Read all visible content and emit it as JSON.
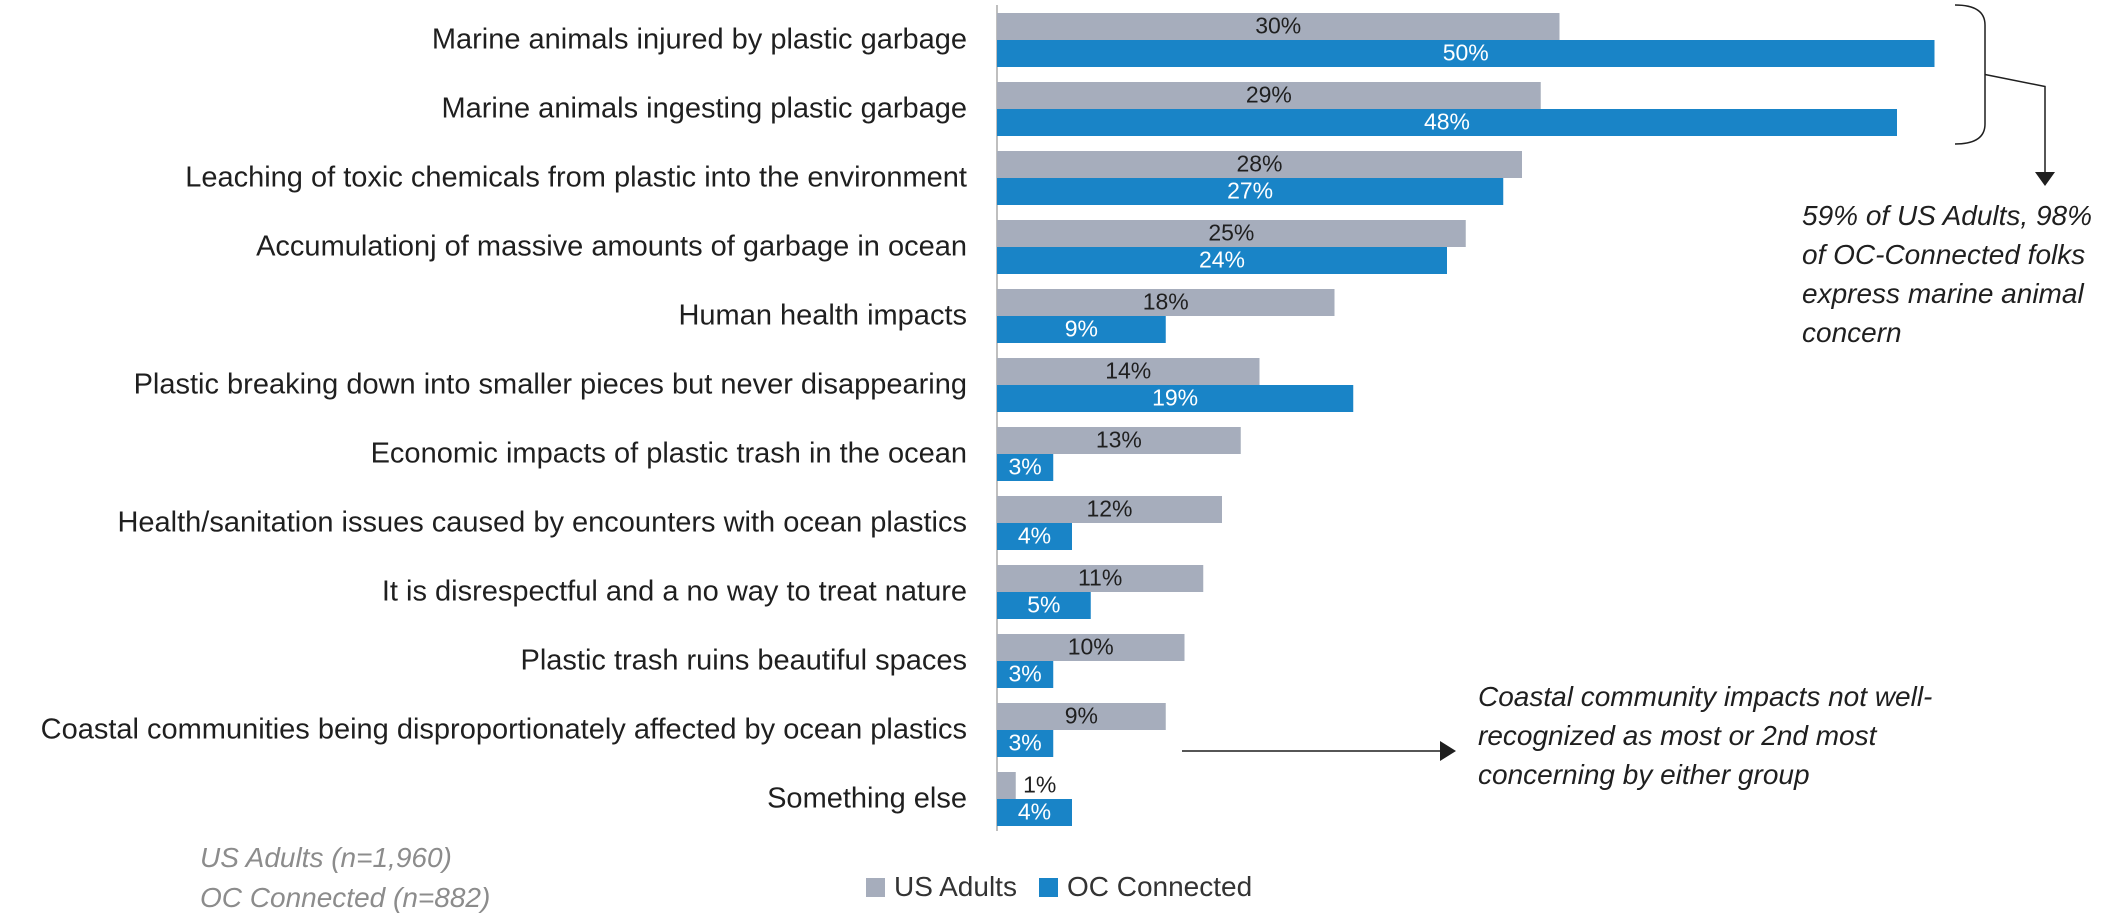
{
  "chart_data": {
    "type": "bar",
    "orientation": "horizontal",
    "categories": [
      "Marine animals injured by plastic garbage",
      "Marine animals ingesting plastic garbage",
      "Leaching of toxic chemicals from plastic into the environment",
      "Accumulationj of massive amounts of garbage in ocean",
      "Human health impacts",
      "Plastic breaking down into smaller pieces but never disappearing",
      "Economic impacts of plastic trash in the ocean",
      "Health/sanitation issues caused by encounters with ocean plastics",
      "It is disrespectful and a no way to treat nature",
      "Plastic trash ruins beautiful spaces",
      "Coastal communities being disproportionately affected by ocean plastics",
      "Something else"
    ],
    "series": [
      {
        "name": "US Adults",
        "color": "#a6adbc",
        "label_color": "#1f1f1f",
        "values": [
          30,
          29,
          28,
          25,
          18,
          14,
          13,
          12,
          11,
          10,
          9,
          1
        ],
        "labels": [
          "30%",
          "29%",
          "28%",
          "25%",
          "18%",
          "14%",
          "13%",
          "12%",
          "11%",
          "10%",
          "9%",
          "1%"
        ]
      },
      {
        "name": "OC Connected",
        "color": "#1984c7",
        "label_color": "#ffffff",
        "values": [
          50,
          48,
          27,
          24,
          9,
          19,
          3,
          4,
          5,
          3,
          3,
          4
        ],
        "labels": [
          "50%",
          "48%",
          "27%",
          "24%",
          "9%",
          "19%",
          "3%",
          "4%",
          "5%",
          "3%",
          "3%",
          "4%"
        ]
      }
    ],
    "xlim": [
      0,
      50
    ],
    "grid": false,
    "legend": "bottom-center",
    "annotations": [
      {
        "id": "marine",
        "text": "59% of US Adults, 98% of OC-Connected folks express  marine animal concern",
        "applies_to": [
          "Marine animals injured by plastic garbage",
          "Marine animals ingesting plastic garbage"
        ]
      },
      {
        "id": "coastal",
        "text": "Coastal community impacts not well-recognized as most or 2nd most concerning by either group",
        "applies_to": [
          "Coastal communities being disproportionately affected by ocean plastics"
        ]
      }
    ]
  },
  "legend": {
    "us_label": "US Adults",
    "oc_label": "OC Connected",
    "us_color": "#a6adbc",
    "oc_color": "#1984c7"
  },
  "notes": {
    "us_sample": "US Adults (n=1,960)",
    "oc_sample": "OC Connected (n=882)"
  },
  "annotation_text": {
    "marine": "59% of US Adults, 98% of OC-Connected folks express  marine animal concern",
    "coastal": "Coastal community impacts not well-recognized as most or 2nd most concerning by either group"
  }
}
